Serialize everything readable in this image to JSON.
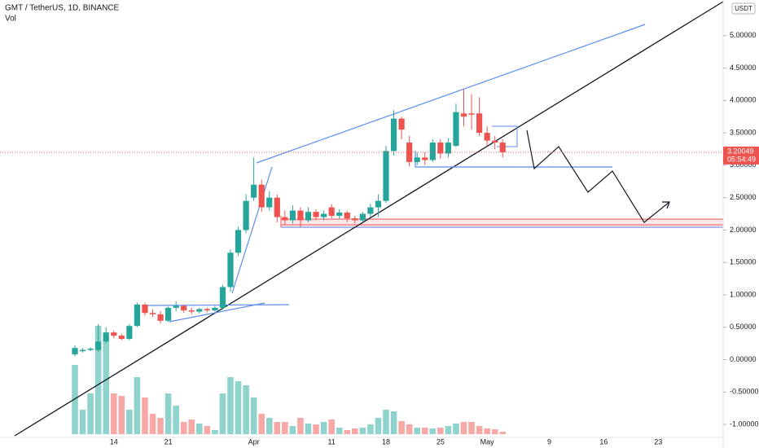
{
  "chart_data": {
    "type": "candlestick",
    "title": "GMT / TetherUS, 1D, BINANCE",
    "volume_label": "Vol",
    "currency": "USDT",
    "categories": [
      null,
      null,
      null,
      null,
      null,
      "14",
      null,
      null,
      null,
      null,
      null,
      null,
      "21",
      null,
      null,
      null,
      null,
      null,
      null,
      null,
      null,
      null,
      null,
      "Apr",
      null,
      null,
      null,
      null,
      null,
      null,
      null,
      null,
      null,
      "11",
      null,
      null,
      null,
      null,
      null,
      null,
      "18",
      null,
      null,
      null,
      null,
      null,
      null,
      "25",
      null,
      null,
      null,
      null,
      null,
      "May",
      null,
      null
    ],
    "future_categories": [
      "9",
      "16",
      "23"
    ],
    "open": [
      0.08,
      0.13,
      0.15,
      0.15,
      0.28,
      0.42,
      0.37,
      0.32,
      0.52,
      0.85,
      0.72,
      0.7,
      0.6,
      0.8,
      0.83,
      0.76,
      0.74,
      0.78,
      0.76,
      0.8,
      1.12,
      1.65,
      2.0,
      2.5,
      2.7,
      2.35,
      2.5,
      2.2,
      2.15,
      2.3,
      2.15,
      2.28,
      2.2,
      2.35,
      2.22,
      2.27,
      2.18,
      2.15,
      2.25,
      2.35,
      2.45,
      3.22,
      3.72,
      3.35,
      3.05,
      3.12,
      3.08,
      3.35,
      3.18,
      3.3,
      3.8,
      3.8,
      3.8,
      3.5,
      3.38,
      3.35
    ],
    "high": [
      0.22,
      0.18,
      0.19,
      0.55,
      0.5,
      0.45,
      0.4,
      0.55,
      0.88,
      0.88,
      0.78,
      0.75,
      0.82,
      0.9,
      0.85,
      0.8,
      0.8,
      0.8,
      0.83,
      1.15,
      1.7,
      2.05,
      2.55,
      3.12,
      2.78,
      2.6,
      2.55,
      2.3,
      2.38,
      2.35,
      2.35,
      2.32,
      2.3,
      2.4,
      2.32,
      2.3,
      2.22,
      2.28,
      2.4,
      2.55,
      3.3,
      3.85,
      3.75,
      3.45,
      3.2,
      3.2,
      3.4,
      3.4,
      3.42,
      3.95,
      4.18,
      4.1,
      4.05,
      3.6,
      3.45,
      3.4
    ],
    "low": [
      0.05,
      0.11,
      0.13,
      0.12,
      0.25,
      0.33,
      0.3,
      0.3,
      0.5,
      0.68,
      0.66,
      0.56,
      0.58,
      0.75,
      0.72,
      0.7,
      0.71,
      0.73,
      0.74,
      0.77,
      1.05,
      1.6,
      1.95,
      2.45,
      2.28,
      2.3,
      2.12,
      2.08,
      2.1,
      2.05,
      2.12,
      2.15,
      2.15,
      2.18,
      2.17,
      2.12,
      2.1,
      2.12,
      2.2,
      2.2,
      2.42,
      3.15,
      3.4,
      2.98,
      3.0,
      3.0,
      3.05,
      3.1,
      3.12,
      3.28,
      3.6,
      3.55,
      3.45,
      3.3,
      3.25,
      3.12
    ],
    "close": [
      0.18,
      0.15,
      0.17,
      0.28,
      0.42,
      0.37,
      0.32,
      0.52,
      0.85,
      0.72,
      0.7,
      0.6,
      0.8,
      0.83,
      0.76,
      0.74,
      0.78,
      0.76,
      0.8,
      1.12,
      1.65,
      2.0,
      2.45,
      2.7,
      2.35,
      2.5,
      2.2,
      2.15,
      2.3,
      2.15,
      2.28,
      2.2,
      2.25,
      2.22,
      2.27,
      2.18,
      2.15,
      2.25,
      2.35,
      2.45,
      3.22,
      3.72,
      3.55,
      3.05,
      3.12,
      3.08,
      3.35,
      3.18,
      3.35,
      3.82,
      3.75,
      3.78,
      3.5,
      3.38,
      3.35,
      3.2
    ],
    "volume": [
      85,
      30,
      50,
      133,
      115,
      50,
      47,
      30,
      70,
      45,
      25,
      20,
      50,
      35,
      15,
      18,
      13,
      10,
      5,
      50,
      70,
      65,
      60,
      45,
      25,
      20,
      15,
      15,
      10,
      20,
      13,
      12,
      15,
      18,
      8,
      5,
      7,
      8,
      12,
      20,
      30,
      28,
      16,
      12,
      8,
      8,
      7,
      8,
      10,
      13,
      15,
      15,
      10,
      7,
      6,
      3
    ],
    "up_color": "#26a69a",
    "down_color": "#ef5350",
    "volume_up_color": "#8fd3cc",
    "volume_down_color": "#f7a9a7",
    "last_price": 3.20049,
    "countdown": "05:54:49",
    "ylim": [
      -1.2,
      5.55
    ],
    "yticks": [
      {
        "value": -1,
        "label": "-1.00000"
      },
      {
        "value": -0.5,
        "label": "-0.50000"
      },
      {
        "value": 0,
        "label": "0.00000"
      },
      {
        "value": 0.5,
        "label": "0.50000"
      },
      {
        "value": 1,
        "label": "1.00000"
      },
      {
        "value": 1.5,
        "label": "1.50000"
      },
      {
        "value": 2,
        "label": "2.00000"
      },
      {
        "value": 2.5,
        "label": "2.50000"
      },
      {
        "value": 3,
        "label": "3.00000"
      },
      {
        "value": 3.5,
        "label": "3.50000"
      },
      {
        "value": 4,
        "label": "4.00000"
      },
      {
        "value": 4.5,
        "label": "4.50000"
      },
      {
        "value": 5,
        "label": "5.00000"
      }
    ]
  }
}
